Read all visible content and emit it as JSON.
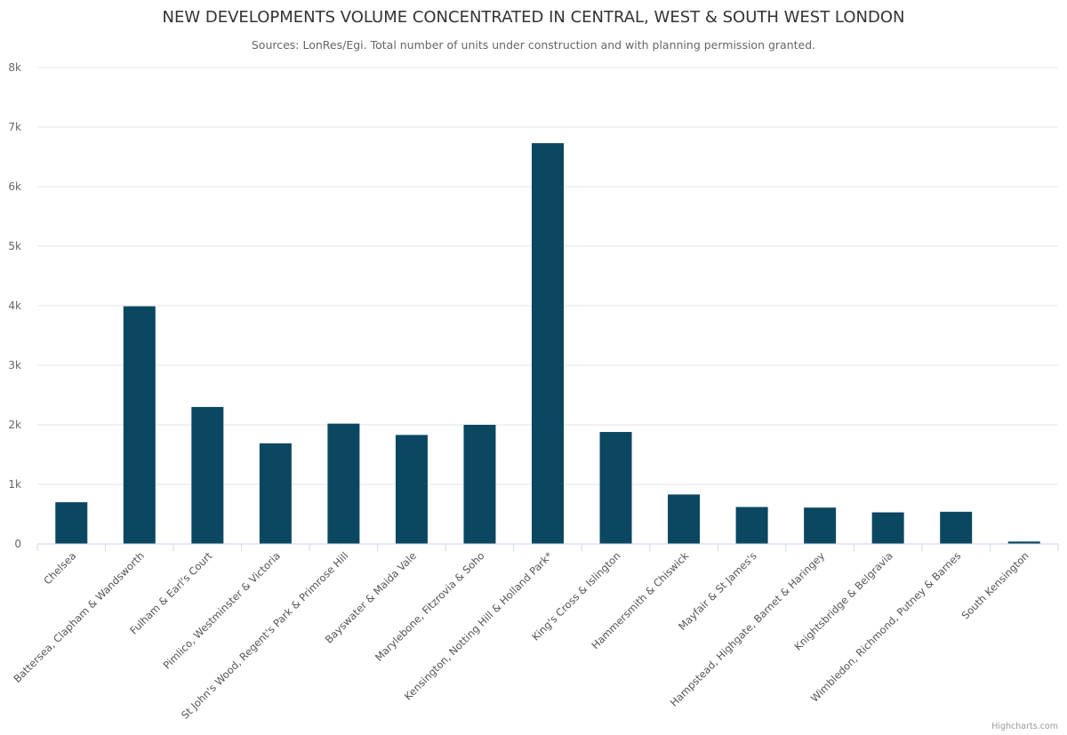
{
  "chart_data": {
    "type": "bar",
    "title": "NEW DEVELOPMENTS VOLUME CONCENTRATED IN CENTRAL, WEST & SOUTH WEST LONDON",
    "subtitle": "Sources: LonRes/Egi. Total number of units under construction and with planning permission granted.",
    "xlabel": "",
    "ylabel": "",
    "ylim": [
      0,
      8000
    ],
    "yticks": [
      0,
      1000,
      2000,
      3000,
      4000,
      5000,
      6000,
      7000,
      8000
    ],
    "ytick_labels": [
      "0",
      "1k",
      "2k",
      "3k",
      "4k",
      "5k",
      "6k",
      "7k",
      "8k"
    ],
    "grid": true,
    "legend": "none",
    "categories": [
      "Chelsea",
      "Battersea, Clapham & Wandsworth",
      "Fulham & Earl's Court",
      "Pimlico, Westminster & Victoria",
      "St John's Wood, Regent's Park & Primrose Hill",
      "Bayswater & Maida Vale",
      "Marylebone, Fitzrovia & Soho",
      "Kensington, Notting Hill & Holland Park*",
      "King's Cross & Islington",
      "Hammersmith & Chiswick",
      "Mayfair & St James's",
      "Hampstead, Highgate, Barnet & Haringey",
      "Knightsbridge & Belgravia",
      "Wimbledon, Richmond, Putney & Barnes",
      "South Kensington"
    ],
    "values": [
      700,
      3990,
      2300,
      1690,
      2020,
      1830,
      2000,
      6730,
      1880,
      830,
      620,
      610,
      530,
      540,
      40
    ],
    "bar_color": "#0b4761",
    "credits": "Highcharts.com"
  }
}
